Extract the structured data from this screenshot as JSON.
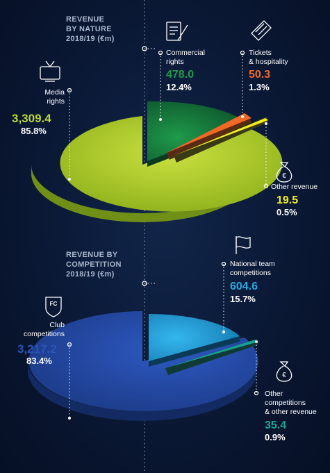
{
  "chart_data": [
    {
      "type": "pie",
      "title": "REVENUE BY NATURE",
      "subtitle": "2018/19 (€m)",
      "categories": [
        "Media rights",
        "Commercial rights",
        "Tickets & hospitality",
        "Other revenue"
      ],
      "values": [
        3309.4,
        478.0,
        50.3,
        19.5
      ],
      "value_labels": [
        "3,309.4",
        "478.0",
        "50.3",
        "19.5"
      ],
      "percentages": [
        "85.8%",
        "12.4%",
        "1.3%",
        "0.5%"
      ],
      "colors": [
        "#b9d631",
        "#1f9a4a",
        "#f06a26",
        "#f2ec1d"
      ],
      "icons": [
        "tv-icon",
        "contract-icon",
        "ticket-icon",
        "money-bag-icon"
      ]
    },
    {
      "type": "pie",
      "title": "REVENUE BY COMPETITION",
      "subtitle": "2018/19 (€m)",
      "categories": [
        "Club competitions",
        "National team competitions",
        "Other competitions & other revenue"
      ],
      "values": [
        3217.2,
        604.6,
        35.4
      ],
      "value_labels": [
        "3,217.2",
        "604.6",
        "35.4"
      ],
      "percentages": [
        "83.4%",
        "15.7%",
        "0.9%"
      ],
      "colors": [
        "#2a55b8",
        "#2aa8e0",
        "#17a38f"
      ],
      "icons": [
        "fc-badge-icon",
        "flag-icon",
        "money-bag-icon"
      ]
    }
  ],
  "labels": {
    "nature_heading_1": "REVENUE",
    "nature_heading_2": "BY NATURE",
    "nature_heading_3": "2018/19 (€m)",
    "media_1": "Media",
    "media_2": "rights",
    "commercial_1": "Commercial",
    "commercial_2": "rights",
    "tickets_1": "Tickets",
    "tickets_2": "& hospitality",
    "other_1": "Other revenue",
    "comp_heading_1": "REVENUE BY",
    "comp_heading_2": "COMPETITION",
    "comp_heading_3": "2018/19 (€m)",
    "club_1": "Club",
    "club_2": "competitions",
    "national_1": "National team",
    "national_2": "competitions",
    "othercomp_1": "Other",
    "othercomp_2": "competitions",
    "othercomp_3": "& other revenue",
    "fc_badge": "FC"
  }
}
